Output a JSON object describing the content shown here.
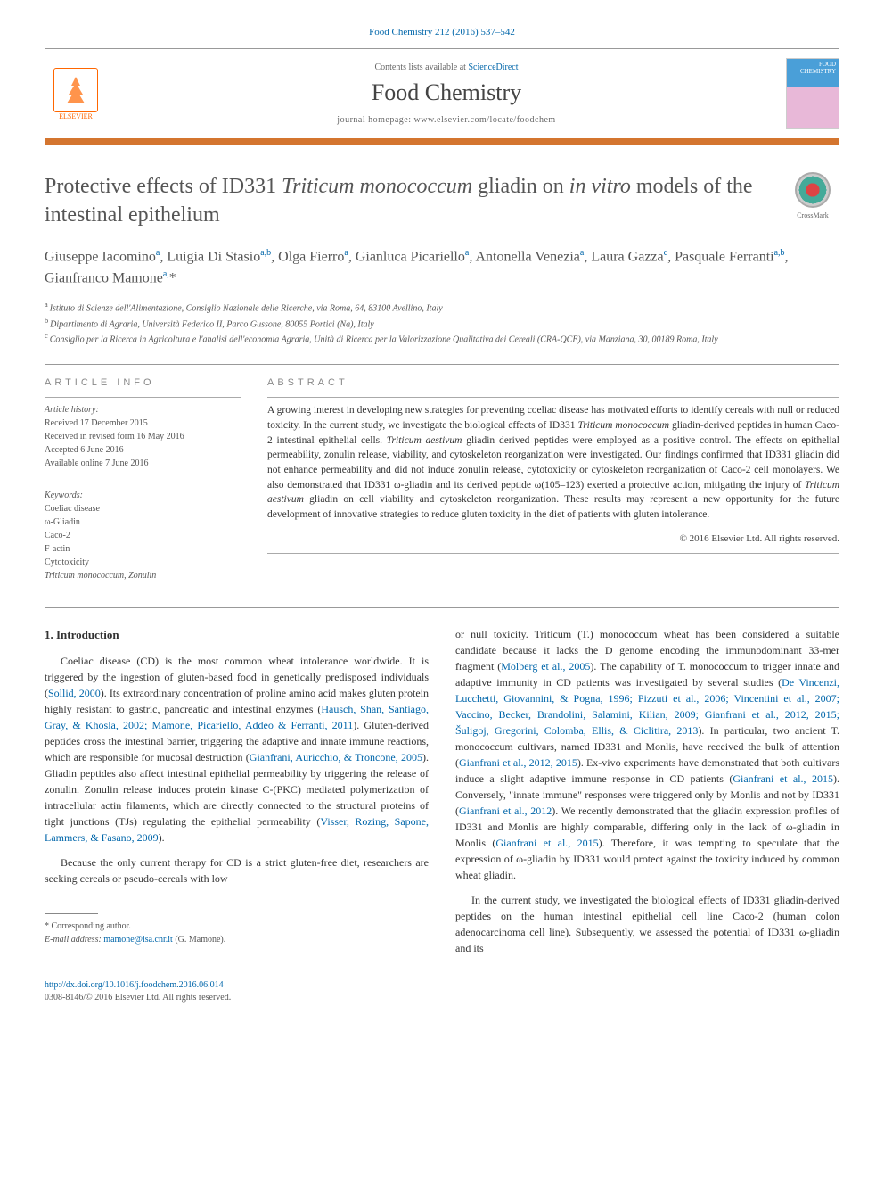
{
  "citation": "Food Chemistry 212 (2016) 537–542",
  "header": {
    "contents_prefix": "Contents lists available at ",
    "contents_link": "ScienceDirect",
    "journal_name": "Food Chemistry",
    "homepage_prefix": "journal homepage: ",
    "homepage_url": "www.elsevier.com/locate/foodchem",
    "publisher": "ELSEVIER",
    "cover_text": "FOOD CHEMISTRY"
  },
  "title_html": "Protective effects of ID331 <span class='italic'>Triticum monococcum</span> gliadin on <span class='italic'>in vitro</span> models of the intestinal epithelium",
  "crossmark_label": "CrossMark",
  "authors_html": "Giuseppe Iacomino<sup>a</sup>, Luigia Di Stasio<sup>a,b</sup>, Olga Fierro<sup>a</sup>, Gianluca Picariello<sup>a</sup>, Antonella Venezia<sup>a</sup>, Laura Gazza<sup>c</sup>, Pasquale Ferranti<sup>a,b</sup>, Gianfranco Mamone<sup>a,</sup>*",
  "affiliations": [
    {
      "sup": "a",
      "text": "Istituto di Scienze dell'Alimentazione, Consiglio Nazionale delle Ricerche, via Roma, 64, 83100 Avellino, Italy"
    },
    {
      "sup": "b",
      "text": "Dipartimento di Agraria, Università Federico II, Parco Gussone, 80055 Portici (Na), Italy"
    },
    {
      "sup": "c",
      "text": "Consiglio per la Ricerca in Agricoltura e l'analisi dell'economia Agraria, Unità di Ricerca per la Valorizzazione Qualitativa dei Cereali (CRA-QCE), via Manziana, 30, 00189 Roma, Italy"
    }
  ],
  "article_info": {
    "heading": "ARTICLE INFO",
    "history_label": "Article history:",
    "history": [
      "Received 17 December 2015",
      "Received in revised form 16 May 2016",
      "Accepted 6 June 2016",
      "Available online 7 June 2016"
    ],
    "keywords_label": "Keywords:",
    "keywords": [
      "Coeliac disease",
      "ω-Gliadin",
      "Caco-2",
      "F-actin",
      "Cytotoxicity",
      "Triticum monococcum, Zonulin"
    ]
  },
  "abstract": {
    "heading": "ABSTRACT",
    "text_html": "A growing interest in developing new strategies for preventing coeliac disease has motivated efforts to identify cereals with null or reduced toxicity. In the current study, we investigate the biological effects of ID331 <span class='italic'>Triticum monococcum</span> gliadin-derived peptides in human Caco-2 intestinal epithelial cells. <span class='italic'>Triticum aestivum</span> gliadin derived peptides were employed as a positive control. The effects on epithelial permeability, zonulin release, viability, and cytoskeleton reorganization were investigated. Our findings confirmed that ID331 gliadin did not enhance permeability and did not induce zonulin release, cytotoxicity or cytoskeleton reorganization of Caco-2 cell monolayers. We also demonstrated that ID331 ω-gliadin and its derived peptide ω(105–123) exerted a protective action, mitigating the injury of <span class='italic'>Triticum aestivum</span> gliadin on cell viability and cytoskeleton reorganization. These results may represent a new opportunity for the future development of innovative strategies to reduce gluten toxicity in the diet of patients with gluten intolerance.",
    "copyright": "© 2016 Elsevier Ltd. All rights reserved."
  },
  "body": {
    "section_heading": "1. Introduction",
    "col1_p1_html": "Coeliac disease (CD) is the most common wheat intolerance worldwide. It is triggered by the ingestion of gluten-based food in genetically predisposed individuals (<a href='#' class='ref-link'>Sollid, 2000</a>). Its extraordinary concentration of proline amino acid makes gluten protein highly resistant to gastric, pancreatic and intestinal enzymes (<a href='#' class='ref-link'>Hausch, Shan, Santiago, Gray, & Khosla, 2002; Mamone, Picariello, Addeo & Ferranti, 2011</a>). Gluten-derived peptides cross the intestinal barrier, triggering the adaptive and innate immune reactions, which are responsible for mucosal destruction (<a href='#' class='ref-link'>Gianfrani, Auricchio, & Troncone, 2005</a>). Gliadin peptides also affect intestinal epithelial permeability by triggering the release of zonulin. Zonulin release induces protein kinase C-(PKC) mediated polymerization of intracellular actin filaments, which are directly connected to the structural proteins of tight junctions (TJs) regulating the epithelial permeability (<a href='#' class='ref-link'>Visser, Rozing, Sapone, Lammers, & Fasano, 2009</a>).",
    "col1_p2_html": "Because the only current therapy for CD is a strict gluten-free diet, researchers are seeking cereals or pseudo-cereals with low",
    "col2_p1_html": "or null toxicity. <span class='italic'>Triticum</span> (<span class='italic'>T.</span>) <span class='italic'>monococcum</span> wheat has been considered a suitable candidate because it lacks the D genome encoding the immunodominant 33-mer fragment (<a href='#' class='ref-link'>Molberg et al., 2005</a>). The capability of <span class='italic'>T. monococcum</span> to trigger innate and adaptive immunity in CD patients was investigated by several studies (<a href='#' class='ref-link'>De Vincenzi, Lucchetti, Giovannini, & Pogna, 1996; Pizzuti et al., 2006; Vincentini et al., 2007; Vaccino, Becker, Brandolini, Salamini, Kilian, 2009; Gianfrani et al., 2012, 2015; Šuligoj, Gregorini, Colomba, Ellis, & Ciclitira, 2013</a>). In particular, two ancient <span class='italic'>T. monococcum</span> cultivars, named ID331 and Monlis, have received the bulk of attention (<a href='#' class='ref-link'>Gianfrani et al., 2012, 2015</a>). <span class='italic'>Ex-vivo</span> experiments have demonstrated that both cultivars induce a slight adaptive immune response in CD patients (<a href='#' class='ref-link'>Gianfrani et al., 2015</a>). Conversely, \"<span class='italic'>innate immune</span>\" responses were triggered only by Monlis and not by ID331 (<a href='#' class='ref-link'>Gianfrani et al., 2012</a>). We recently demonstrated that the gliadin expression profiles of ID331 and Monlis are highly comparable, differing only in the lack of ω-gliadin in Monlis (<a href='#' class='ref-link'>Gianfrani et al., 2015</a>). Therefore, it was tempting to speculate that the expression of ω-gliadin by ID331 would protect against the toxicity induced by common wheat gliadin.",
    "col2_p2_html": "In the current study, we investigated the biological effects of ID331 gliadin-derived peptides on the human intestinal epithelial cell line Caco-2 (human colon adenocarcinoma cell line). Subsequently, we assessed the potential of ID331 ω-gliadin and its"
  },
  "footnotes": {
    "corr_label": "* Corresponding author.",
    "email_label": "E-mail address:",
    "email": "mamone@isa.cnr.it",
    "email_name": "(G. Mamone)."
  },
  "footer": {
    "doi": "http://dx.doi.org/10.1016/j.foodchem.2016.06.014",
    "issn_line": "0308-8146/© 2016 Elsevier Ltd. All rights reserved."
  },
  "colors": {
    "accent_orange": "#d4752f",
    "link_blue": "#0066aa",
    "text_gray": "#555555"
  }
}
